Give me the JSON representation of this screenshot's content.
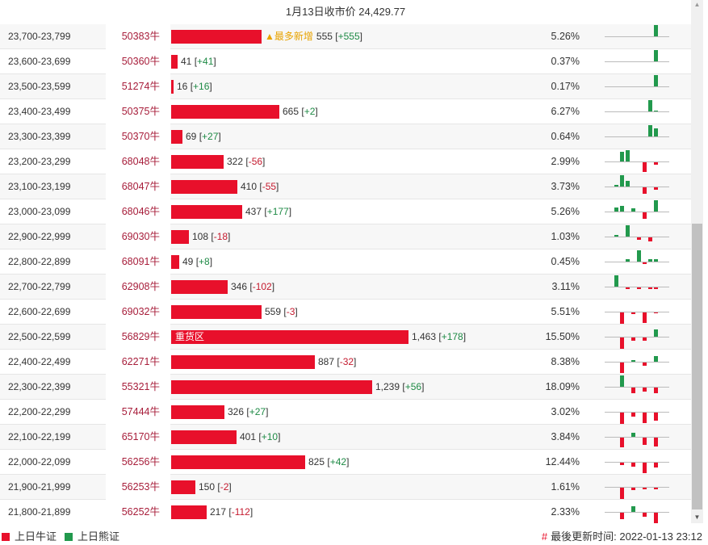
{
  "header": {
    "title": "1月13日收市价 24,429.77"
  },
  "colors": {
    "bull_red": "#e8102b",
    "bear_green": "#22994d",
    "code_red": "#a71d3a",
    "highlight_tag": "#e8a300"
  },
  "rows": [
    {
      "range": "23,700-23,799",
      "code": "50383牛",
      "qty": 555,
      "qty_text": "555",
      "delta": "+555",
      "pct": "5.26%",
      "tag": "▲最多新增",
      "bar_label": "",
      "spark": [
        0,
        0,
        0,
        0,
        0,
        0,
        0,
        0,
        14
      ]
    },
    {
      "range": "23,600-23,699",
      "code": "50360牛",
      "qty": 41,
      "qty_text": "41",
      "delta": "+41",
      "pct": "0.37%",
      "tag": "",
      "bar_label": "",
      "spark": [
        0,
        0,
        0,
        0,
        0,
        0,
        0,
        0,
        14
      ]
    },
    {
      "range": "23,500-23,599",
      "code": "51274牛",
      "qty": 16,
      "qty_text": "16",
      "delta": "+16",
      "pct": "0.17%",
      "tag": "",
      "bar_label": "",
      "spark": [
        0,
        0,
        0,
        0,
        0,
        0,
        0,
        0,
        14
      ]
    },
    {
      "range": "23,400-23,499",
      "code": "50375牛",
      "qty": 665,
      "qty_text": "665",
      "delta": "+2",
      "pct": "6.27%",
      "tag": "",
      "bar_label": "",
      "spark": [
        0,
        0,
        0,
        0,
        0,
        0,
        0,
        14,
        1
      ]
    },
    {
      "range": "23,300-23,399",
      "code": "50370牛",
      "qty": 69,
      "qty_text": "69",
      "delta": "+27",
      "pct": "0.64%",
      "tag": "",
      "bar_label": "",
      "spark": [
        0,
        0,
        0,
        0,
        0,
        0,
        0,
        14,
        10
      ]
    },
    {
      "range": "23,200-23,299",
      "code": "68048牛",
      "qty": 322,
      "qty_text": "322",
      "delta": "-56",
      "pct": "2.99%",
      "tag": "",
      "bar_label": "",
      "spark": [
        0,
        0,
        12,
        14,
        0,
        0,
        -12,
        0,
        -3
      ]
    },
    {
      "range": "23,100-23,199",
      "code": "68047牛",
      "qty": 410,
      "qty_text": "410",
      "delta": "-55",
      "pct": "3.73%",
      "tag": "",
      "bar_label": "",
      "spark": [
        0,
        2,
        14,
        7,
        0,
        0,
        -8,
        0,
        -3
      ]
    },
    {
      "range": "23,000-23,099",
      "code": "68046牛",
      "qty": 437,
      "qty_text": "437",
      "delta": "+177",
      "pct": "5.26%",
      "tag": "",
      "bar_label": "",
      "spark": [
        0,
        5,
        7,
        0,
        4,
        0,
        -8,
        0,
        14
      ]
    },
    {
      "range": "22,900-22,999",
      "code": "69030牛",
      "qty": 108,
      "qty_text": "108",
      "delta": "-18",
      "pct": "1.03%",
      "tag": "",
      "bar_label": "",
      "spark": [
        0,
        2,
        0,
        14,
        0,
        -3,
        0,
        -5,
        0
      ]
    },
    {
      "range": "22,800-22,899",
      "code": "68091牛",
      "qty": 49,
      "qty_text": "49",
      "delta": "+8",
      "pct": "0.45%",
      "tag": "",
      "bar_label": "",
      "spark": [
        0,
        0,
        0,
        3,
        0,
        14,
        -2,
        3,
        3
      ]
    },
    {
      "range": "22,700-22,799",
      "code": "62908牛",
      "qty": 346,
      "qty_text": "346",
      "delta": "-102",
      "pct": "3.11%",
      "tag": "",
      "bar_label": "",
      "spark": [
        0,
        14,
        0,
        -2,
        0,
        -2,
        0,
        -2,
        -2
      ]
    },
    {
      "range": "22,600-22,699",
      "code": "69032牛",
      "qty": 559,
      "qty_text": "559",
      "delta": "-3",
      "pct": "5.51%",
      "tag": "",
      "bar_label": "",
      "spark": [
        0,
        0,
        -14,
        0,
        -2,
        0,
        -13,
        0,
        -1
      ]
    },
    {
      "range": "22,500-22,599",
      "code": "56829牛",
      "qty": 1463,
      "qty_text": "1,463",
      "delta": "+178",
      "pct": "15.50%",
      "tag": "",
      "bar_label": "重货区",
      "spark": [
        0,
        0,
        -14,
        0,
        -4,
        0,
        -4,
        0,
        9
      ]
    },
    {
      "range": "22,400-22,499",
      "code": "62271牛",
      "qty": 887,
      "qty_text": "887",
      "delta": "-32",
      "pct": "8.38%",
      "tag": "",
      "bar_label": "",
      "spark": [
        0,
        0,
        -13,
        0,
        2,
        0,
        -4,
        0,
        7
      ]
    },
    {
      "range": "22,300-22,399",
      "code": "55321牛",
      "qty": 1239,
      "qty_text": "1,239",
      "delta": "+56",
      "pct": "18.09%",
      "tag": "",
      "bar_label": "",
      "spark": [
        0,
        0,
        14,
        0,
        -7,
        0,
        -5,
        0,
        -7
      ]
    },
    {
      "range": "22,200-22,299",
      "code": "57444牛",
      "qty": 326,
      "qty_text": "326",
      "delta": "+27",
      "pct": "3.02%",
      "tag": "",
      "bar_label": "",
      "spark": [
        0,
        0,
        -14,
        0,
        -5,
        0,
        -13,
        0,
        -10
      ]
    },
    {
      "range": "22,100-22,199",
      "code": "65170牛",
      "qty": 401,
      "qty_text": "401",
      "delta": "+10",
      "pct": "3.84%",
      "tag": "",
      "bar_label": "",
      "spark": [
        0,
        0,
        -12,
        0,
        5,
        0,
        -9,
        0,
        -11
      ]
    },
    {
      "range": "22,000-22,099",
      "code": "56256牛",
      "qty": 825,
      "qty_text": "825",
      "delta": "+42",
      "pct": "12.44%",
      "tag": "",
      "bar_label": "",
      "spark": [
        0,
        0,
        -3,
        0,
        -5,
        0,
        -13,
        0,
        -6
      ]
    },
    {
      "range": "21,900-21,999",
      "code": "56253牛",
      "qty": 150,
      "qty_text": "150",
      "delta": "-2",
      "pct": "1.61%",
      "tag": "",
      "bar_label": "",
      "spark": [
        0,
        0,
        -14,
        0,
        -3,
        0,
        -2,
        0,
        -2
      ]
    },
    {
      "range": "21,800-21,899",
      "code": "56252牛",
      "qty": 217,
      "qty_text": "217",
      "delta": "-112",
      "pct": "2.33%",
      "tag": "",
      "bar_label": "",
      "spark": [
        0,
        0,
        -8,
        0,
        7,
        0,
        -5,
        0,
        -14
      ]
    }
  ],
  "footer": {
    "legend_bull": "上日牛证",
    "legend_bear": "上日熊证",
    "updated_hash": "#",
    "updated_label": "最後更新时间: 2022-01-13 23:12"
  }
}
